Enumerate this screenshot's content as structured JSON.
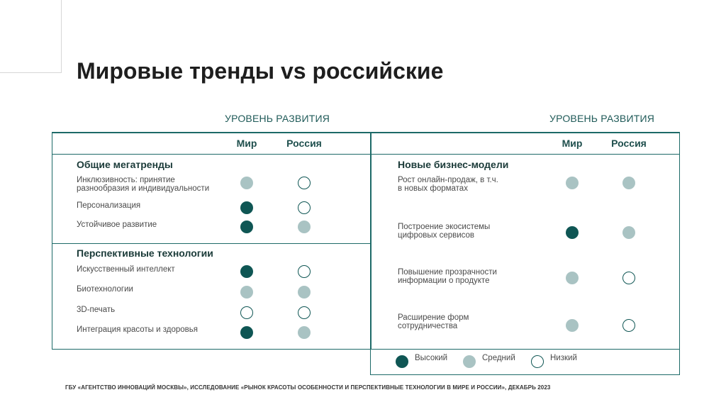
{
  "slide": {
    "title": "Мировые тренды vs российские",
    "level_header_left": "УРОВЕНЬ РАЗВИТИЯ",
    "level_header_right": "УРОВЕНЬ РАЗВИТИЯ",
    "col_world": "Мир",
    "col_russia": "Россия"
  },
  "left_table": {
    "section1": {
      "title": "Общие мегатренды",
      "rows": [
        {
          "line1": "Инклюзивность: принятие",
          "line2": "разнообразия и индивидуальности",
          "world": "mid",
          "russia": "low"
        },
        {
          "line1": "Персонализация",
          "line2": "",
          "world": "high",
          "russia": "low"
        },
        {
          "line1": "Устойчивое развитие",
          "line2": "",
          "world": "high",
          "russia": "mid"
        }
      ]
    },
    "section2": {
      "title": "Перспективные технологии",
      "rows": [
        {
          "line1": "Искусственный интеллект",
          "line2": "",
          "world": "high",
          "russia": "low"
        },
        {
          "line1": "Биотехнологии",
          "line2": "",
          "world": "mid",
          "russia": "mid"
        },
        {
          "line1": "3D-печать",
          "line2": "",
          "world": "low",
          "russia": "low"
        },
        {
          "line1": "Интеграция красоты и здоровья",
          "line2": "",
          "world": "high",
          "russia": "mid"
        }
      ]
    }
  },
  "right_table": {
    "section": {
      "title": "Новые бизнес-модели",
      "rows": [
        {
          "line1": "Рост онлайн-продаж, в т.ч.",
          "line2": "в новых форматах",
          "world": "mid",
          "russia": "mid"
        },
        {
          "line1": "Построение экосистемы",
          "line2": "цифровых сервисов",
          "world": "high",
          "russia": "mid"
        },
        {
          "line1": "Повышение прозрачности",
          "line2": "информации о продукте",
          "world": "mid",
          "russia": "low"
        },
        {
          "line1": "Расширение форм",
          "line2": "сотрудничества",
          "world": "mid",
          "russia": "low"
        }
      ]
    }
  },
  "legend": {
    "high": "Высокий",
    "mid": "Средний",
    "low": "Низкий"
  },
  "footer": "ГБУ «АГЕНТСТВО ИННОВАЦИЙ МОСКВЫ», ИССЛЕДОВАНИЕ «РЫНОК КРАСОТЫ ОСОБЕННОСТИ И ПЕРСПЕКТИВНЫЕ ТЕХНОЛОГИИ В МИРЕ И РОССИИ», ДЕКАБРЬ 2023",
  "colors": {
    "high": "#0f5654",
    "mid": "#a9c3c3",
    "border": "#1d6a68"
  }
}
